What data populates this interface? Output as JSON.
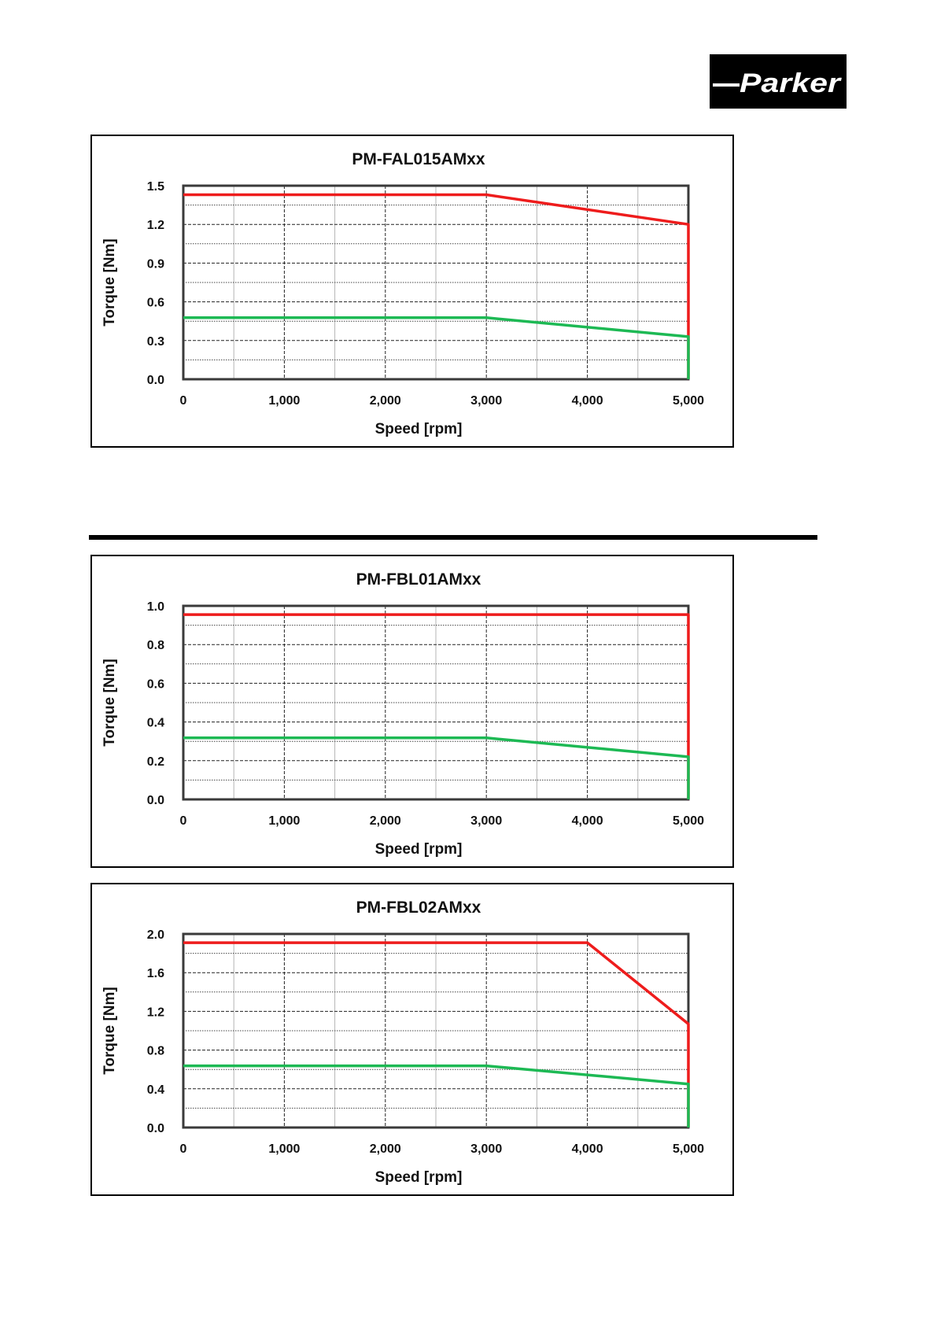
{
  "logo": {
    "text": "Parker"
  },
  "colors": {
    "peak": "#ee1c1c",
    "continuous": "#1db954"
  },
  "chart_data": [
    {
      "type": "line",
      "title": "PM-FAL015AMxx",
      "xlabel": "Speed [rpm]",
      "ylabel": "Torque [Nm]",
      "xlim": [
        0,
        5000
      ],
      "ylim": [
        0,
        1.5
      ],
      "x_ticks": [
        0,
        1000,
        2000,
        3000,
        4000,
        5000
      ],
      "x_tick_labels": [
        "0",
        "1,000",
        "2,000",
        "3,000",
        "4,000",
        "5,000"
      ],
      "y_ticks": [
        0,
        0.3,
        0.6,
        0.9,
        1.2,
        1.5
      ],
      "y_tick_labels": [
        "0.0",
        "0.3",
        "0.6",
        "0.9",
        "1.2",
        "1.5"
      ],
      "grid": true,
      "series": [
        {
          "color": "#ee1c1c",
          "x": [
            0,
            3000,
            5000,
            5000
          ],
          "y": [
            1.43,
            1.43,
            1.2,
            0
          ]
        },
        {
          "color": "#1db954",
          "x": [
            0,
            3000,
            5000,
            5000
          ],
          "y": [
            0.477,
            0.477,
            0.33,
            0
          ]
        }
      ]
    },
    {
      "type": "line",
      "title": "PM-FBL01AMxx",
      "xlabel": "Speed [rpm]",
      "ylabel": "Torque [Nm]",
      "xlim": [
        0,
        5000
      ],
      "ylim": [
        0,
        1.0
      ],
      "x_ticks": [
        0,
        1000,
        2000,
        3000,
        4000,
        5000
      ],
      "x_tick_labels": [
        "0",
        "1,000",
        "2,000",
        "3,000",
        "4,000",
        "5,000"
      ],
      "y_ticks": [
        0,
        0.2,
        0.4,
        0.6,
        0.8,
        1.0
      ],
      "y_tick_labels": [
        "0.0",
        "0.2",
        "0.4",
        "0.6",
        "0.8",
        "1.0"
      ],
      "grid": true,
      "series": [
        {
          "color": "#ee1c1c",
          "x": [
            0,
            5000,
            5000
          ],
          "y": [
            0.955,
            0.955,
            0
          ]
        },
        {
          "color": "#1db954",
          "x": [
            0,
            3000,
            5000,
            5000
          ],
          "y": [
            0.318,
            0.318,
            0.22,
            0
          ]
        }
      ]
    },
    {
      "type": "line",
      "title": "PM-FBL02AMxx",
      "xlabel": "Speed [rpm]",
      "ylabel": "Torque [Nm]",
      "xlim": [
        0,
        5000
      ],
      "ylim": [
        0,
        2.0
      ],
      "x_ticks": [
        0,
        1000,
        2000,
        3000,
        4000,
        5000
      ],
      "x_tick_labels": [
        "0",
        "1,000",
        "2,000",
        "3,000",
        "4,000",
        "5,000"
      ],
      "y_ticks": [
        0,
        0.4,
        0.8,
        1.2,
        1.6,
        2.0
      ],
      "y_tick_labels": [
        "0.0",
        "0.4",
        "0.8",
        "1.2",
        "1.6",
        "2.0"
      ],
      "grid": true,
      "series": [
        {
          "color": "#ee1c1c",
          "x": [
            0,
            4000,
            5000,
            5000
          ],
          "y": [
            1.91,
            1.91,
            1.07,
            0
          ]
        },
        {
          "color": "#1db954",
          "x": [
            0,
            3000,
            5000,
            5000
          ],
          "y": [
            0.637,
            0.637,
            0.45,
            0
          ]
        }
      ]
    }
  ]
}
